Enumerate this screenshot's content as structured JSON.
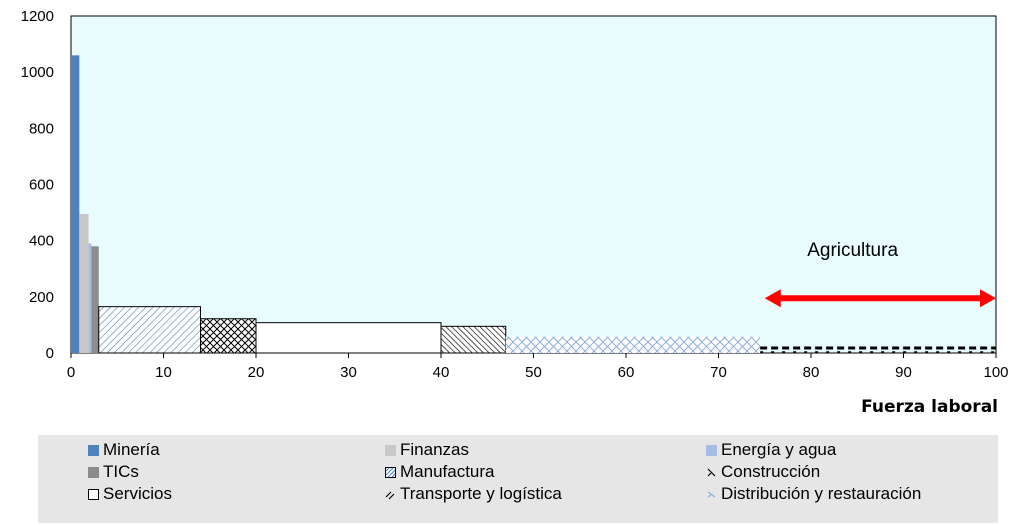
{
  "chart_data": {
    "type": "bar",
    "subtype": "variable-width",
    "xlabel": "Fuerza laboral",
    "ylabel": "",
    "xlim": [
      0,
      100
    ],
    "ylim": [
      0,
      1200
    ],
    "xticks": [
      0,
      10,
      20,
      30,
      40,
      50,
      60,
      70,
      80,
      90,
      100
    ],
    "yticks": [
      0,
      200,
      400,
      600,
      800,
      1000,
      1200
    ],
    "legend_position": "bottom",
    "series": [
      {
        "name": "Minería",
        "x_start": 0,
        "x_end": 0.9,
        "value": 1060,
        "color": "#4f81bd",
        "pattern": "solid"
      },
      {
        "name": "Finanzas",
        "x_start": 0.9,
        "x_end": 1.9,
        "value": 495,
        "color": "#c8c8c8",
        "pattern": "solid"
      },
      {
        "name": "Energía y agua",
        "x_start": 1.9,
        "x_end": 2.2,
        "value": 390,
        "color": "#a6bce3",
        "pattern": "solid"
      },
      {
        "name": "TICs",
        "x_start": 2.2,
        "x_end": 3.0,
        "value": 380,
        "color": "#8c8c8c",
        "pattern": "solid"
      },
      {
        "name": "Manufactura",
        "x_start": 3.0,
        "x_end": 14.0,
        "value": 165,
        "color": "#4f81bd",
        "pattern": "diagonal"
      },
      {
        "name": "Construcción",
        "x_start": 14.0,
        "x_end": 20.0,
        "value": 122,
        "color": "#000000",
        "pattern": "crosshatch"
      },
      {
        "name": "Servicios",
        "x_start": 20.0,
        "x_end": 40.0,
        "value": 108,
        "color": "#000000",
        "pattern": "outline"
      },
      {
        "name": "Transporte y logística",
        "x_start": 40.0,
        "x_end": 47.0,
        "value": 95,
        "color": "#000000",
        "pattern": "dense-diagonal"
      },
      {
        "name": "Distribución y restauración",
        "x_start": 47.0,
        "x_end": 74.5,
        "value": 58,
        "color": "#4f81bd",
        "pattern": "light-crosshatch"
      },
      {
        "name": "Agricultura",
        "x_start": 74.5,
        "x_end": 100.0,
        "value": 18,
        "color": "#000000",
        "pattern": "dashed-top"
      }
    ],
    "annotations": [
      {
        "text": "Agricultura",
        "x": 84.5,
        "y": 370,
        "arrow_from": 75,
        "arrow_to": 100,
        "arrow_y": 195,
        "color": "#ff0000"
      }
    ]
  },
  "legend": {
    "items": [
      {
        "label": "Minería",
        "swatch": "solid-blue"
      },
      {
        "label": "Finanzas",
        "swatch": "solid-lightgray"
      },
      {
        "label": "Energía y agua",
        "swatch": "solid-lightblue"
      },
      {
        "label": "TICs",
        "swatch": "solid-gray"
      },
      {
        "label": "Manufactura",
        "swatch": "hatch-box"
      },
      {
        "label": "Construcción",
        "swatch": "cross-glyph"
      },
      {
        "label": "Servicios",
        "swatch": "empty-box"
      },
      {
        "label": "Transporte y logística",
        "swatch": "dense-diag-glyph"
      },
      {
        "label": "Distribución y restauración",
        "swatch": "light-cross-glyph"
      }
    ]
  }
}
